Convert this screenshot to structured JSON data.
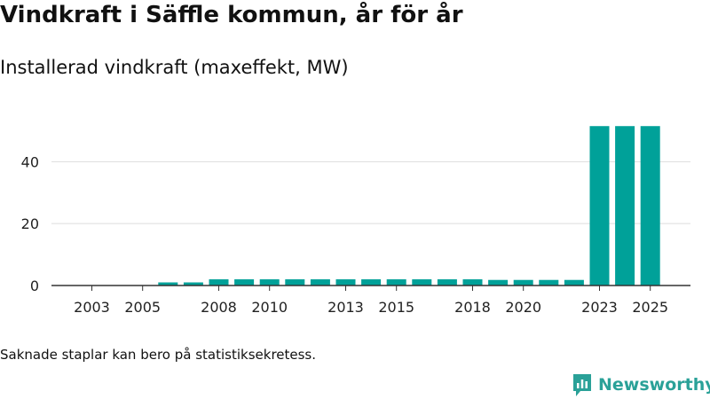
{
  "title": "Vindkraft i Säffle kommun, år för år",
  "subtitle": "Installerad vindkraft (maxeffekt, MW)",
  "note": "Saknade staplar kan bero på statistiksekretess.",
  "brand": {
    "name": "Newsworthy",
    "icon": "newsworthy-logo-icon"
  },
  "colors": {
    "bar": "#00a199",
    "grid": "#dddddd",
    "axis": "#333333",
    "text": "#222222",
    "brand": "#2aa198"
  },
  "chart_data": {
    "type": "bar",
    "title": "Vindkraft i Säffle kommun, år för år",
    "ylabel": "Installerad vindkraft (maxeffekt, MW)",
    "xlabel": "",
    "categories": [
      "2003",
      "2004",
      "2005",
      "2006",
      "2007",
      "2008",
      "2009",
      "2010",
      "2011",
      "2012",
      "2013",
      "2014",
      "2015",
      "2016",
      "2017",
      "2018",
      "2019",
      "2020",
      "2021",
      "2022",
      "2023",
      "2024",
      "2025"
    ],
    "values": [
      null,
      null,
      null,
      1.0,
      1.0,
      2.0,
      2.0,
      2.0,
      2.0,
      2.0,
      2.0,
      2.0,
      2.0,
      2.0,
      2.0,
      2.0,
      1.8,
      1.8,
      1.8,
      1.8,
      51.5,
      51.5,
      51.5
    ],
    "ylim": [
      0,
      55
    ],
    "yticks": [
      0,
      20,
      40
    ],
    "xticks": [
      "2003",
      "2005",
      "2008",
      "2010",
      "2013",
      "2015",
      "2018",
      "2020",
      "2023",
      "2025"
    ],
    "grid": true,
    "legend": "none"
  }
}
